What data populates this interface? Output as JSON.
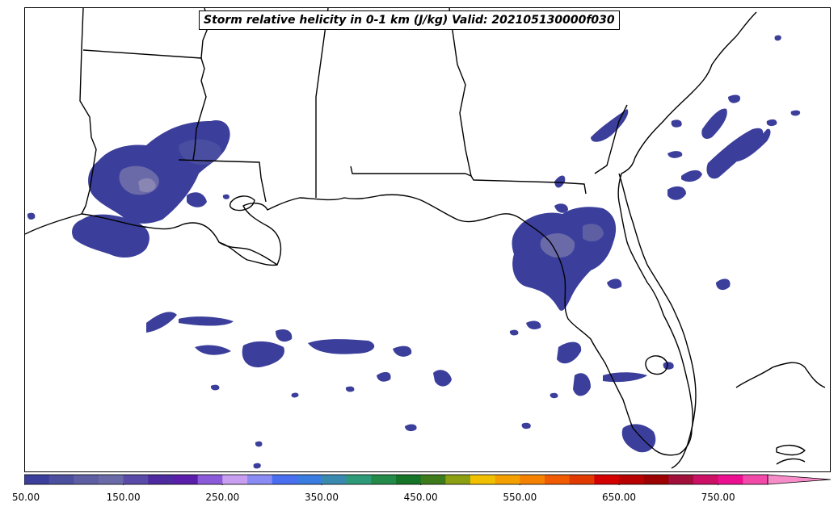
{
  "title": "Storm relative helicity in 0-1 km (J/kg) Valid: 202105130000f030",
  "colorbar": {
    "min": 50,
    "max": 800,
    "step": 25,
    "extend": "max",
    "tick_labels": [
      "50.00",
      "150.00",
      "250.00",
      "350.00",
      "450.00",
      "550.00",
      "650.00",
      "750.00"
    ],
    "tick_values": [
      50,
      150,
      250,
      350,
      450,
      550,
      650,
      750
    ],
    "colors": [
      "#3b3f9b",
      "#4c4f9e",
      "#5e5fa3",
      "#6a6aa8",
      "#5a4aa8",
      "#4d2aa0",
      "#5a1eaa",
      "#8a5ad8",
      "#c89ef0",
      "#8a8cf4",
      "#4a6ef0",
      "#3a7ce0",
      "#3a8ab0",
      "#2e9a78",
      "#248a4a",
      "#167428",
      "#3c7a1c",
      "#8c9e12",
      "#f0c000",
      "#f4a000",
      "#f48200",
      "#f05a00",
      "#e03a00",
      "#d40000",
      "#b80000",
      "#9c0000",
      "#a0103a",
      "#cc1066",
      "#ec1090",
      "#f24aa8",
      "#f68cc8"
    ]
  },
  "chart_data": {
    "type": "heatmap",
    "title": "Storm relative helicity in 0-1 km (J/kg) Valid: 202105130000f030",
    "units": "J/kg",
    "region": "US Gulf Coast",
    "contour_range": [
      50,
      800
    ],
    "contour_interval": 25,
    "observed_max_band": [
      50,
      175
    ]
  }
}
